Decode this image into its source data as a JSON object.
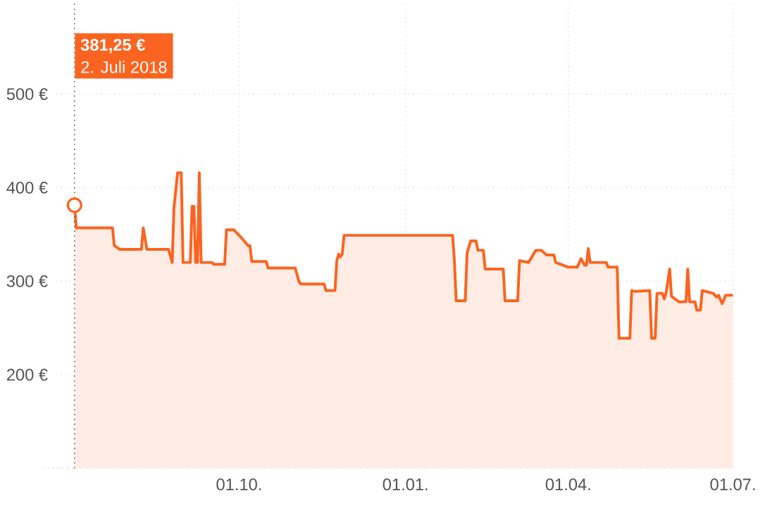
{
  "chart_data": {
    "type": "area",
    "color": "#fb6420",
    "x": [
      "2018-07-02",
      "2018-07-03",
      "2018-07-23",
      "2018-07-24",
      "2018-07-27",
      "2018-08-08",
      "2018-08-09",
      "2018-08-11",
      "2018-08-23",
      "2018-08-25",
      "2018-08-26",
      "2018-08-28",
      "2018-08-30",
      "2018-08-31",
      "2018-09-04",
      "2018-09-05",
      "2018-09-06",
      "2018-09-07",
      "2018-09-08",
      "2018-09-09",
      "2018-09-10",
      "2018-09-16",
      "2018-09-17",
      "2018-09-23",
      "2018-09-24",
      "2018-09-28",
      "2018-10-02",
      "2018-10-06",
      "2018-10-07",
      "2018-10-08",
      "2018-10-16",
      "2018-10-17",
      "2018-11-01",
      "2018-11-03",
      "2018-11-04",
      "2018-11-17",
      "2018-11-18",
      "2018-11-23",
      "2018-11-24",
      "2018-11-25",
      "2018-11-26",
      "2018-11-27",
      "2018-11-28",
      "2019-01-27",
      "2019-01-28",
      "2019-01-29",
      "2019-02-03",
      "2019-02-04",
      "2019-02-06",
      "2019-02-09",
      "2019-02-10",
      "2019-02-13",
      "2019-02-14",
      "2019-02-24",
      "2019-02-25",
      "2019-03-04",
      "2019-03-05",
      "2019-03-10",
      "2019-03-14",
      "2019-03-17",
      "2019-03-20",
      "2019-03-24",
      "2019-03-25",
      "2019-04-01",
      "2019-04-06",
      "2019-04-08",
      "2019-04-10",
      "2019-04-11",
      "2019-04-12",
      "2019-04-13",
      "2019-04-22",
      "2019-04-23",
      "2019-04-28",
      "2019-04-29",
      "2019-05-05",
      "2019-05-06",
      "2019-05-08",
      "2019-05-16",
      "2019-05-17",
      "2019-05-19",
      "2019-05-20",
      "2019-05-23",
      "2019-05-24",
      "2019-05-25",
      "2019-05-27",
      "2019-05-28",
      "2019-06-01",
      "2019-06-05",
      "2019-06-06",
      "2019-06-07",
      "2019-06-10",
      "2019-06-11",
      "2019-06-13",
      "2019-06-14",
      "2019-06-20",
      "2019-06-22",
      "2019-06-23",
      "2019-06-25",
      "2019-06-27",
      "2019-07-01"
    ],
    "values": [
      381.25,
      357,
      357,
      338,
      334,
      334,
      357,
      334,
      334,
      320,
      379,
      416,
      416,
      320,
      320,
      380,
      380,
      320,
      320,
      416,
      320,
      320,
      318,
      318,
      355,
      355,
      347,
      338,
      338,
      321,
      321,
      314,
      314,
      300,
      297,
      297,
      290,
      290,
      322,
      329,
      326,
      329,
      349,
      349,
      322,
      279,
      279,
      330,
      343,
      343,
      333,
      333,
      313,
      313,
      279,
      279,
      322,
      320,
      333,
      333,
      328,
      328,
      320,
      315,
      315,
      324,
      317,
      317,
      335,
      320,
      320,
      315,
      315,
      239,
      239,
      290,
      289,
      290,
      239,
      239,
      287,
      287,
      281,
      287,
      313,
      284,
      278,
      278,
      313,
      278,
      278,
      269,
      269,
      290,
      287,
      283,
      285,
      276,
      285,
      285
    ],
    "xlim": [
      "2018-06-22",
      "2019-07-01"
    ],
    "xticks": [
      {
        "value": "2018-10-01",
        "label": "01.10."
      },
      {
        "value": "2019-01-01",
        "label": "01.01."
      },
      {
        "value": "2019-04-01",
        "label": "01.04."
      },
      {
        "value": "2019-07-01",
        "label": "01.07."
      }
    ],
    "ylim": [
      100,
      600
    ],
    "yticks": [
      {
        "value": 200,
        "label": "200 €"
      },
      {
        "value": 300,
        "label": "300 €"
      },
      {
        "value": 400,
        "label": "400 €"
      },
      {
        "value": 500,
        "label": "500 €"
      }
    ],
    "grid": true,
    "ref_lines": [
      {
        "axis": "x",
        "value": "2018-07-02",
        "color": "#555555",
        "line_style": "dotted"
      }
    ],
    "annotations": [
      "381,25 €",
      "2. Juli 2018"
    ]
  }
}
